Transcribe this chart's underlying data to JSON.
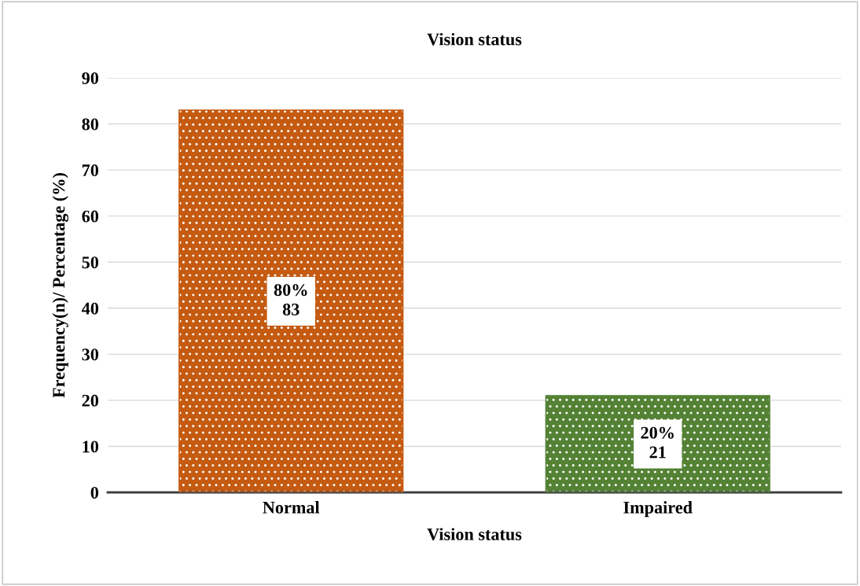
{
  "chart_data": {
    "type": "bar",
    "title": "Vision status",
    "xlabel": "Vision status",
    "ylabel": "Frequency(n)/ Percentage (%)",
    "categories": [
      "Normal",
      "Impaired"
    ],
    "values": [
      83,
      21
    ],
    "colors": [
      "#c55a11",
      "#548235"
    ],
    "value_labels": [
      "80%\n83",
      "20%\n21"
    ],
    "ylim": [
      0,
      90
    ],
    "yticks": [
      0,
      10,
      20,
      30,
      40,
      50,
      60,
      70,
      80,
      90
    ],
    "grid": "y",
    "legend": false
  }
}
